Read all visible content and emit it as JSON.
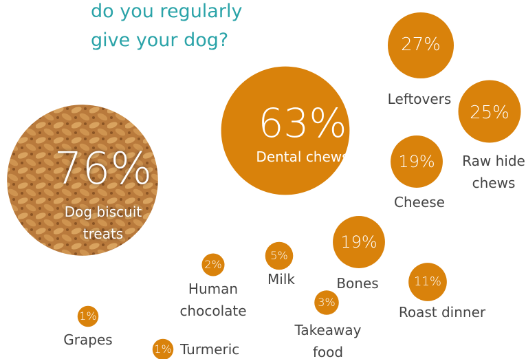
{
  "chart_data": {
    "type": "bubble",
    "title": "do you regularly give your dog?",
    "categories": [
      "Dog biscuit treats",
      "Dental chews",
      "Leftovers",
      "Raw hide chews",
      "Cheese",
      "Bones",
      "Milk",
      "Human chocolate",
      "Takeaway food",
      "Roast dinner",
      "Grapes",
      "Turmeric"
    ],
    "values": [
      76,
      63,
      27,
      25,
      19,
      19,
      5,
      2,
      3,
      11,
      1,
      1
    ],
    "value_labels": [
      "76%",
      "63%",
      "27%",
      "25%",
      "19%",
      "19%",
      "5%",
      "2%",
      "3%",
      "11%",
      "1%",
      "1%"
    ],
    "color": "#d9820b"
  }
}
